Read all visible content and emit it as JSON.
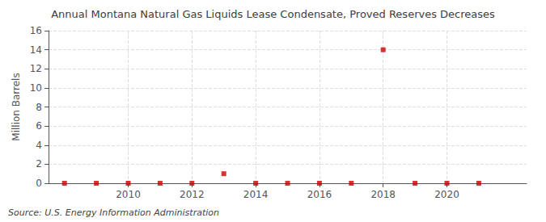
{
  "chart_data": {
    "type": "scatter",
    "title": "Annual Montana Natural Gas Liquids Lease Condensate, Proved Reserves Decreases",
    "ylabel": "Million Barrels",
    "annotations": [
      "Source: U.S. Energy Information Administration"
    ],
    "x": [
      2008,
      2009,
      2010,
      2011,
      2012,
      2013,
      2014,
      2015,
      2016,
      2017,
      2018,
      2019,
      2020,
      2021
    ],
    "values": [
      0,
      0,
      0,
      0,
      0,
      1.0,
      0,
      0,
      0,
      0,
      14.0,
      0,
      0,
      0
    ],
    "color": "#cc0000",
    "marker": "square",
    "xlim": [
      2007.5,
      2022.5
    ],
    "ylim": [
      0,
      16
    ],
    "xticks": [
      2010,
      2012,
      2014,
      2016,
      2018,
      2020
    ],
    "yticks": [
      0,
      2,
      4,
      6,
      8,
      10,
      12,
      14,
      16
    ],
    "grid": true
  }
}
